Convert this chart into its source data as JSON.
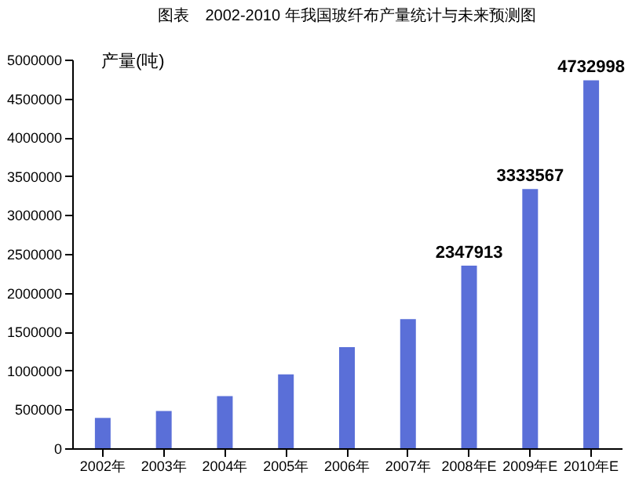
{
  "chart_data": {
    "type": "bar",
    "title": "图表　2002-2010 年我国玻纤布产量统计与未来预测图",
    "ylabel": "产量(吨)",
    "categories": [
      "2002年",
      "2003年",
      "2004年",
      "2005年",
      "2006年",
      "2007年",
      "2008年E",
      "2009年E",
      "2010年E"
    ],
    "values": [
      390000,
      480000,
      670000,
      950000,
      1300000,
      1660000,
      2347913,
      3333567,
      4732998
    ],
    "value_labels": [
      null,
      null,
      null,
      null,
      null,
      null,
      "2347913",
      "3333567",
      "4732998"
    ],
    "color": "#5a6fd8",
    "ylim": [
      0,
      5000000
    ],
    "yticks": [
      0,
      500000,
      1000000,
      1500000,
      2000000,
      2500000,
      3000000,
      3500000,
      4000000,
      4500000,
      5000000
    ],
    "grid": false
  }
}
